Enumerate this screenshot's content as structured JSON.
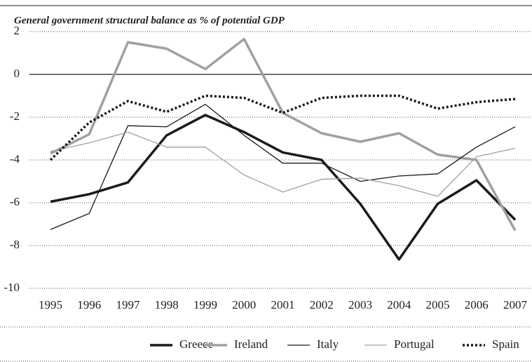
{
  "chart_data": {
    "type": "line",
    "title": "General government structural balance as % of potential GDP",
    "categories": [
      "1995",
      "1996",
      "1997",
      "1998",
      "1999",
      "2000",
      "2001",
      "2002",
      "2003",
      "2004",
      "2005",
      "2006",
      "2007"
    ],
    "ylim": [
      -10,
      2
    ],
    "yticks": [
      -10,
      -8,
      -6,
      -4,
      -2,
      0,
      2
    ],
    "grid": true,
    "legend": "bottom",
    "series": [
      {
        "name": "Greece",
        "color": "#1a1a1a",
        "style": "thick",
        "values": [
          -5.95,
          -5.6,
          -5.05,
          -2.85,
          -1.9,
          -2.7,
          -3.65,
          -4.0,
          -6.05,
          -8.65,
          -6.05,
          -4.95,
          -6.8
        ]
      },
      {
        "name": "Ireland",
        "color": "#a0a0a0",
        "style": "thick",
        "values": [
          -3.7,
          -2.8,
          1.5,
          1.2,
          0.25,
          1.65,
          -1.8,
          -2.75,
          -3.15,
          -2.75,
          -3.75,
          -4.0,
          -7.3
        ]
      },
      {
        "name": "Italy",
        "color": "#1a1a1a",
        "style": "thin",
        "values": [
          -7.25,
          -6.5,
          -2.4,
          -2.45,
          -1.4,
          -2.85,
          -4.15,
          -4.15,
          -5.0,
          -4.75,
          -4.65,
          -3.4,
          -2.45
        ]
      },
      {
        "name": "Portugal",
        "color": "#a0a0a0",
        "style": "thin",
        "values": [
          -3.6,
          -3.2,
          -2.7,
          -3.4,
          -3.4,
          -4.7,
          -5.5,
          -4.9,
          -4.85,
          -5.2,
          -5.7,
          -3.85,
          -3.45
        ]
      },
      {
        "name": "Spain",
        "color": "#1a1a1a",
        "style": "dotted",
        "values": [
          -4.0,
          -2.25,
          -1.25,
          -1.75,
          -1.0,
          -1.1,
          -1.8,
          -1.1,
          -1.0,
          -1.0,
          -1.6,
          -1.3,
          -1.15
        ]
      }
    ]
  }
}
